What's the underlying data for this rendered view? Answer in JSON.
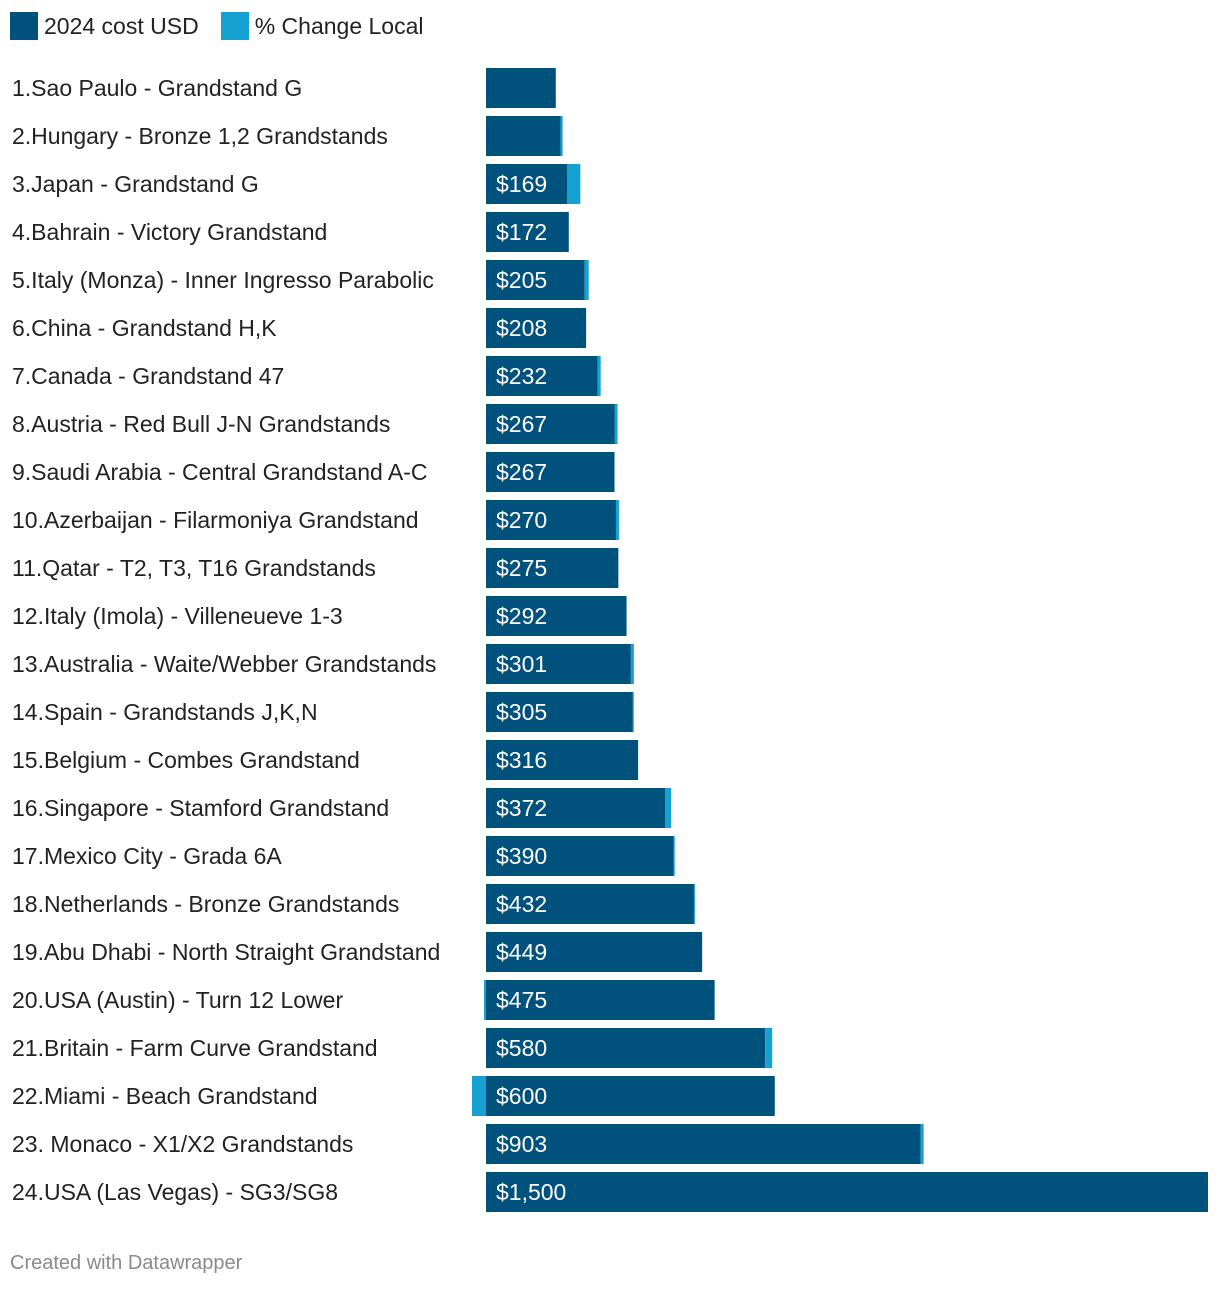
{
  "legend": [
    {
      "label": "2024 cost USD",
      "color": "#00527c"
    },
    {
      "label": "% Change Local",
      "color": "#15a1d1"
    }
  ],
  "footer": "Created with Datawrapper",
  "chart_data": {
    "type": "bar",
    "orientation": "horizontal",
    "stacked": true,
    "title": "",
    "xlabel": "",
    "ylabel": "",
    "xlim": [
      0,
      1500
    ],
    "grid": false,
    "legend_position": "top-left",
    "categories": [
      "1.Sao Paulo - Grandstand G",
      "2.Hungary - Bronze 1,2 Grandstands",
      "3.Japan - Grandstand G",
      "4.Bahrain - Victory Grandstand",
      "5.Italy (Monza) - Inner Ingresso Parabolic",
      "6.China - Grandstand H,K",
      "7.Canada - Grandstand 47",
      "8.Austria - Red Bull J-N Grandstands",
      "9.Saudi Arabia - Central Grandstand A-C",
      "10.Azerbaijan - Filarmoniya Grandstand",
      "11.Qatar - T2, T3, T16 Grandstands",
      "12.Italy (Imola) - Villeneueve 1-3",
      "13.Australia - Waite/Webber Grandstands",
      "14.Spain - Grandstands J,K,N",
      "15.Belgium - Combes Grandstand",
      "16.Singapore - Stamford Grandstand",
      "17.Mexico City - Grada 6A",
      "18.Netherlands - Bronze Grandstands",
      "19.Abu Dhabi - North Straight Grandstand",
      "20.USA (Austin) - Turn 12 Lower",
      "21.Britain - Farm Curve Grandstand",
      "22.Miami - Beach Grandstand",
      "23. Monaco - X1/X2 Grandstands",
      "24.USA (Las Vegas) - SG3/SG8"
    ],
    "series": [
      {
        "name": "2024 cost USD",
        "color": "#00527c",
        "values": [
          145,
          155,
          169,
          172,
          205,
          208,
          232,
          267,
          267,
          270,
          275,
          292,
          301,
          305,
          316,
          372,
          390,
          432,
          449,
          475,
          580,
          600,
          903,
          1500
        ],
        "labels": [
          "",
          "",
          "$169",
          "$172",
          "$205",
          "$208",
          "$232",
          "$267",
          "$267",
          "$270",
          "$275",
          "$292",
          "$301",
          "$305",
          "$316",
          "$372",
          "$390",
          "$432",
          "$449",
          "$475",
          "$580",
          "$600",
          "$903",
          "$1,500"
        ]
      },
      {
        "name": "% Change Local",
        "color": "#15a1d1",
        "values": [
          0,
          2,
          13,
          0,
          4,
          0,
          3,
          3,
          0,
          3,
          0,
          0,
          3,
          1,
          0,
          6,
          1,
          1,
          0,
          -1,
          7,
          -7,
          3,
          0
        ]
      }
    ]
  }
}
